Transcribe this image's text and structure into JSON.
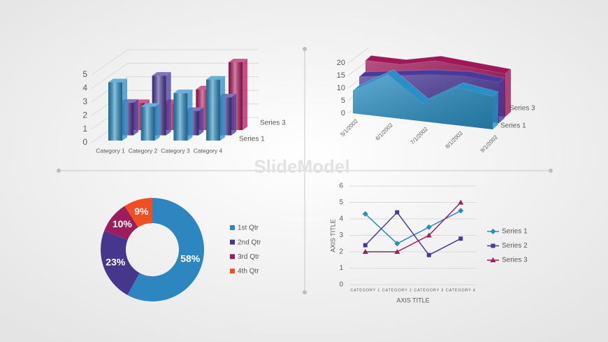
{
  "watermark": "SlideModel",
  "chart_data": [
    {
      "type": "bar",
      "categories": [
        "Category 1",
        "Category 2",
        "Category 3",
        "Category 4"
      ],
      "series": [
        {
          "name": "Series 1",
          "color": "#2a8fc4",
          "values": [
            4.3,
            2.5,
            3.5,
            4.5
          ]
        },
        {
          "color": "#4b3a9a",
          "values": [
            2.4,
            4.4,
            1.8,
            2.8
          ]
        },
        {
          "name": "Series 3",
          "color": "#b0185e",
          "values": [
            2,
            2,
            3,
            5
          ]
        }
      ],
      "ylim": [
        0,
        5
      ],
      "yticks": [
        0,
        1,
        2,
        3,
        4,
        5
      ],
      "grid": true
    },
    {
      "type": "area",
      "x": [
        "5/1/2002",
        "6/1/2002",
        "7/1/2002",
        "8/1/2002",
        "9/1/2002"
      ],
      "series": [
        {
          "name": "Series 1",
          "color": "#2a8fc4",
          "values": [
            9,
            17,
            7,
            15,
            13
          ]
        },
        {
          "color": "#4b3a9a",
          "values": [
            12,
            14,
            16,
            17,
            16
          ]
        },
        {
          "name": "Series 3",
          "color": "#a0185a",
          "values": [
            16,
            16,
            19,
            18,
            17
          ]
        }
      ],
      "ylim": [
        0,
        20
      ],
      "yticks": [
        0,
        5,
        10,
        15,
        20
      ],
      "grid": true
    },
    {
      "type": "doughnut",
      "categories": [
        "1st Qtr",
        "2nd Qtr",
        "3rd Qtr",
        "4th Qtr"
      ],
      "values": [
        58,
        23,
        10,
        9
      ],
      "value_labels": [
        "58%",
        "23%",
        "10%",
        "9%"
      ],
      "colors": [
        "#2e86c1",
        "#46378c",
        "#9b1d5c",
        "#f04e23"
      ]
    },
    {
      "type": "line",
      "categories": [
        "CATEGORY 1",
        "CATEGORY 2",
        "CATEGORY 3",
        "CATEGORY 4"
      ],
      "series": [
        {
          "name": "Series 1",
          "color": "#2e8bb8",
          "marker": "diamond",
          "values": [
            4.3,
            2.5,
            3.5,
            4.5
          ]
        },
        {
          "name": "Series 2",
          "color": "#4b3a8c",
          "marker": "square",
          "values": [
            2.4,
            4.4,
            1.8,
            2.8
          ]
        },
        {
          "name": "Series 3",
          "color": "#9c1f5e",
          "marker": "triangle",
          "values": [
            2,
            2,
            3,
            5
          ]
        }
      ],
      "ylim": [
        0,
        6
      ],
      "yticks": [
        0,
        1,
        2,
        3,
        4,
        5,
        6
      ],
      "grid": true,
      "xlabel": "AXIS TITLE",
      "ylabel": "AXIS TITLE"
    }
  ]
}
